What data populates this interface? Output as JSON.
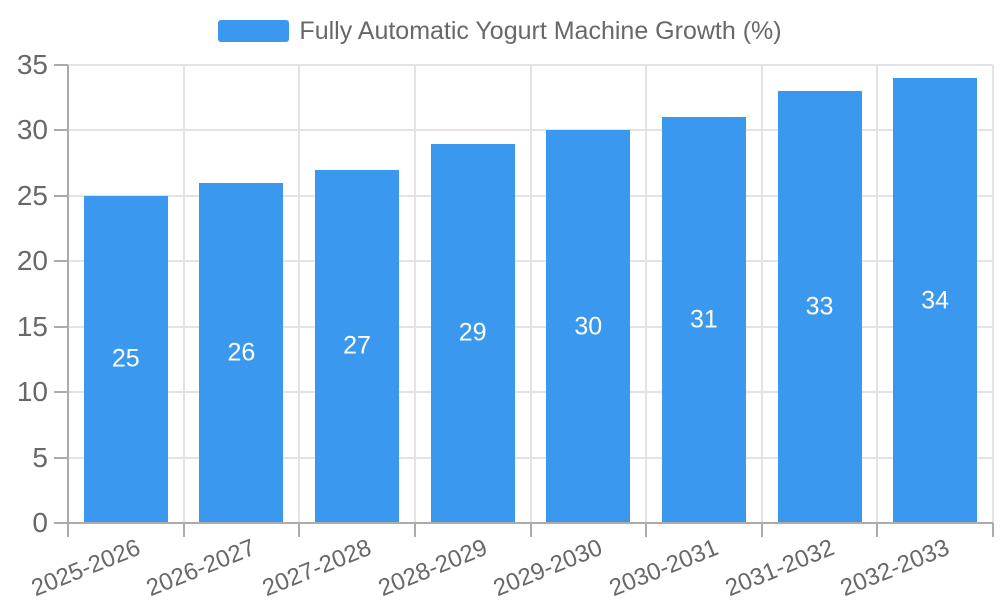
{
  "chart_data": {
    "type": "bar",
    "title": "Fully Automatic Yogurt Machine Growth (%)",
    "legend_entries": [
      "Fully Automatic Yogurt Machine Growth (%)"
    ],
    "legend_position": "top",
    "categories": [
      "2025-2026",
      "2026-2027",
      "2027-2028",
      "2028-2029",
      "2029-2030",
      "2030-2031",
      "2031-2032",
      "2032-2033"
    ],
    "values": [
      25,
      26,
      27,
      29,
      30,
      31,
      33,
      34
    ],
    "value_labels_shown": true,
    "xlabel": "",
    "ylabel": "",
    "ylim": [
      0,
      35
    ],
    "yticks": [
      0,
      5,
      10,
      15,
      20,
      25,
      30,
      35
    ],
    "grid": true,
    "colors": {
      "bar": "#3a99ee",
      "value_label": "#ffffff",
      "axis_text": "#686868",
      "grid_line": "#e3e3e3",
      "axis_line": "#ababab"
    }
  }
}
